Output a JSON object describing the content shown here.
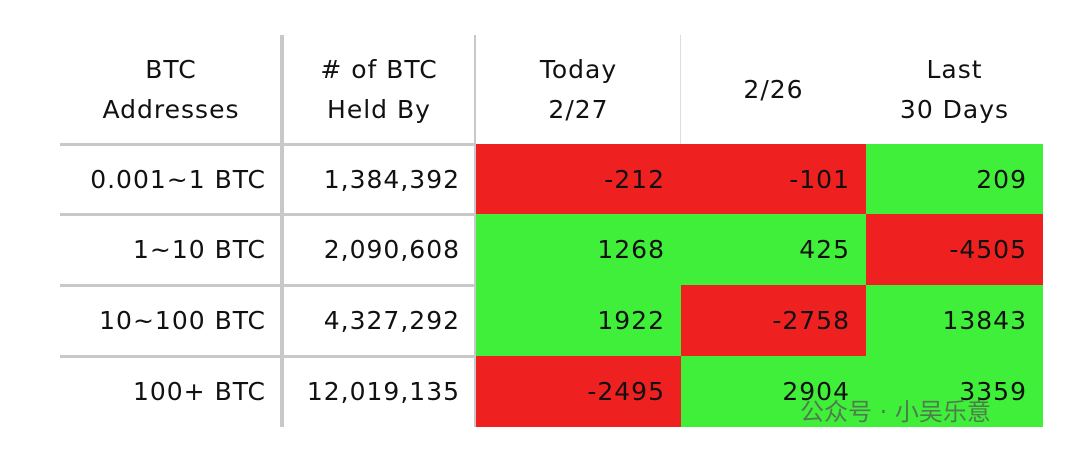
{
  "table": {
    "header": [
      [
        "BTC",
        "Addresses"
      ],
      [
        "# of BTC",
        "Held By"
      ],
      [
        "Today",
        "2/27"
      ],
      [
        "2/26"
      ],
      [
        "Last",
        "30 Days"
      ]
    ],
    "rows": [
      [
        "0.001~1 BTC",
        "1,384,392",
        -212,
        -101,
        209
      ],
      [
        "1~10 BTC",
        "2,090,608",
        1268,
        425,
        -4505
      ],
      [
        "10~100 BTC",
        "4,327,292",
        1922,
        -2758,
        13843
      ],
      [
        "100+ BTC",
        "12,019,135",
        -2495,
        2904,
        3359
      ]
    ],
    "colors": {
      "positive": "#40ef3a",
      "negative": "#ef2020"
    }
  },
  "watermark": "公众号 · 小吴乐意"
}
